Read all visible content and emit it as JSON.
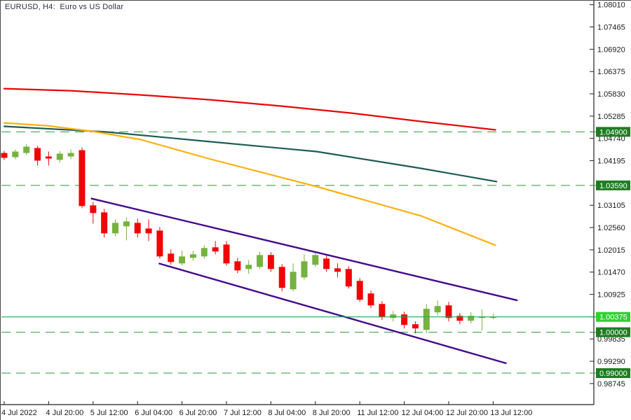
{
  "window": {
    "title": "EURUSD, H4:  Euro vs US Dollar"
  },
  "colors": {
    "background": "#ffffff",
    "frame_border": "#4a4a4a",
    "axis_line": "#222222",
    "axis_text": "#1a1a1a",
    "title_text": "#2c2c44",
    "bull": "#76b23f",
    "bear": "#f00505",
    "ma_red": "#e80707",
    "ma_teal": "#1d5c55",
    "ma_orange": "#ffb00f",
    "channel_purple": "#45098e",
    "level_dashed_green": "#2f9935",
    "current_price_line": "#21a857",
    "badge_current_bg": "#2fd032",
    "badge_level_bg": "#1e7d22",
    "badge_text": "#ffffff"
  },
  "chart_data": {
    "type": "candlestick",
    "title": "EURUSD, H4:  Euro vs US Dollar",
    "symbol": "EURUSD",
    "timeframe": "H4",
    "description": "Euro vs US Dollar",
    "current_price": 1.00375,
    "price_axis": {
      "side": "right",
      "range_bottom": 0.9823,
      "range_top": 1.0809,
      "tick_labels": [
        "1.08010",
        "1.07465",
        "1.06920",
        "1.06375",
        "1.05830",
        "1.05285",
        "1.04740",
        "1.04195",
        "1.03105",
        "1.02560",
        "1.02015",
        "1.01470",
        "1.00925",
        "0.99835",
        "0.99290",
        "0.98745"
      ]
    },
    "levels": [
      {
        "price": 1.049,
        "label": "1.04900",
        "style": "dashed"
      },
      {
        "price": 1.0359,
        "label": "1.03590",
        "style": "dashed"
      },
      {
        "price": 1.00375,
        "label": "1.00375",
        "style": "current"
      },
      {
        "price": 1.0,
        "label": "1.00000",
        "style": "dashed"
      },
      {
        "price": 0.99,
        "label": "0.99000",
        "style": "dashed"
      }
    ],
    "time_axis": {
      "labels": [
        {
          "index": 0,
          "label": "4 Jul 2022"
        },
        {
          "index": 4,
          "label": "4 Jul 20:00"
        },
        {
          "index": 8,
          "label": "5 Jul 12:00"
        },
        {
          "index": 12,
          "label": "6 Jul 04:00"
        },
        {
          "index": 16,
          "label": "6 Jul 20:00"
        },
        {
          "index": 20,
          "label": "7 Jul 12:00"
        },
        {
          "index": 24,
          "label": "8 Jul 04:00"
        },
        {
          "index": 28,
          "label": "8 Jul 20:00"
        },
        {
          "index": 32,
          "label": "11 Jul 12:00"
        },
        {
          "index": 36,
          "label": "12 Jul 04:00"
        },
        {
          "index": 40,
          "label": "12 Jul 20:00"
        },
        {
          "index": 44,
          "label": "13 Jul 12:00"
        }
      ]
    },
    "candles_format": [
      "open",
      "high",
      "low",
      "close"
    ],
    "candles": [
      [
        1.04384,
        1.04435,
        1.04213,
        1.04264
      ],
      [
        1.04281,
        1.04469,
        1.0423,
        1.04418
      ],
      [
        1.04384,
        1.04606,
        1.04333,
        1.04538
      ],
      [
        1.04504,
        1.04555,
        1.04076,
        1.04196
      ],
      [
        1.04298,
        1.04418,
        1.04076,
        1.04247
      ],
      [
        1.04213,
        1.04435,
        1.04145,
        1.04367
      ],
      [
        1.04298,
        1.04469,
        1.0423,
        1.04384
      ],
      [
        1.04452,
        1.04521,
        1.03033,
        1.03085
      ],
      [
        1.03102,
        1.03187,
        1.02657,
        1.02914
      ],
      [
        1.02931,
        1.03016,
        1.02315,
        1.02418
      ],
      [
        1.02418,
        1.0276,
        1.0235,
        1.02674
      ],
      [
        1.02589,
        1.02811,
        1.02247,
        1.02709
      ],
      [
        1.02674,
        1.02777,
        1.02315,
        1.02418
      ],
      [
        1.02537,
        1.0276,
        1.0223,
        1.02418
      ],
      [
        1.02486,
        1.02572,
        1.01802,
        1.01854
      ],
      [
        1.01922,
        1.02025,
        1.01649,
        1.01717
      ],
      [
        1.01683,
        1.01991,
        1.01631,
        1.01854
      ],
      [
        1.0182,
        1.01991,
        1.01751,
        1.01905
      ],
      [
        1.01854,
        1.02127,
        1.01802,
        1.02059
      ],
      [
        1.02076,
        1.0223,
        1.01905,
        1.01974
      ],
      [
        1.02144,
        1.0223,
        1.01631,
        1.01683
      ],
      [
        1.01734,
        1.0182,
        1.01444,
        1.01512
      ],
      [
        1.01546,
        1.01768,
        1.01427,
        1.01649
      ],
      [
        1.01597,
        1.01974,
        1.01546,
        1.01888
      ],
      [
        1.01888,
        1.01956,
        1.01478,
        1.01546
      ],
      [
        1.01597,
        1.01666,
        1.00999,
        1.01084
      ],
      [
        1.0105,
        1.01683,
        1.00999,
        1.01478
      ],
      [
        1.01341,
        1.01905,
        1.0129,
        1.01734
      ],
      [
        1.01649,
        1.01974,
        1.01597,
        1.01888
      ],
      [
        1.01802,
        1.01888,
        1.01478,
        1.01546
      ],
      [
        1.01563,
        1.01683,
        1.01341,
        1.01478
      ],
      [
        1.01546,
        1.01614,
        1.01067,
        1.01119
      ],
      [
        1.01255,
        1.01324,
        1.00742,
        1.00794
      ],
      [
        1.00948,
        1.01016,
        1.00589,
        1.00657
      ],
      [
        1.00691,
        1.0076,
        1.00298,
        1.00366
      ],
      [
        1.00349,
        1.0052,
        1.00264,
        1.00435
      ],
      [
        1.00435,
        1.00503,
        1.00093,
        1.00178
      ],
      [
        1.00195,
        1.00264,
        0.99973,
        1.00093
      ],
      [
        1.00059,
        1.00691,
        0.99973,
        1.00572
      ],
      [
        1.00486,
        1.00777,
        1.00409,
        1.0064
      ],
      [
        1.00657,
        1.00742,
        1.00264,
        1.00349
      ],
      [
        1.00401,
        1.00469,
        1.00195,
        1.00281
      ],
      [
        1.00281,
        1.00486,
        1.00212,
        1.00401
      ],
      [
        1.00349,
        1.00555,
        1.00042,
        1.00383
      ],
      [
        1.00349,
        1.00452,
        1.00315,
        1.00375
      ]
    ],
    "moving_averages": [
      {
        "name": "ma-slow-red",
        "color_key": "ma_red",
        "points": [
          [
            0,
            1.05957
          ],
          [
            6.0,
            1.05906
          ],
          [
            12.3,
            1.05803
          ],
          [
            18.6,
            1.05684
          ],
          [
            24.9,
            1.0553
          ],
          [
            31.2,
            1.05359
          ],
          [
            37.5,
            1.05154
          ],
          [
            44.2,
            1.04949
          ]
        ]
      },
      {
        "name": "ma-mid-teal",
        "color_key": "ma_teal",
        "points": [
          [
            0,
            1.05034
          ],
          [
            9.2,
            1.04897
          ],
          [
            18.6,
            1.04658
          ],
          [
            28.1,
            1.04418
          ],
          [
            37.5,
            1.04008
          ],
          [
            44.3,
            1.03683
          ]
        ]
      },
      {
        "name": "ma-fast-orange",
        "color_key": "ma_orange",
        "points": [
          [
            0,
            1.05119
          ],
          [
            3.8,
            1.05051
          ],
          [
            7.9,
            1.04914
          ],
          [
            12.3,
            1.04709
          ],
          [
            18.6,
            1.0423
          ],
          [
            28.1,
            1.03563
          ],
          [
            37.5,
            1.02845
          ],
          [
            44.2,
            1.02127
          ]
        ]
      }
    ],
    "channel": {
      "upper": [
        [
          7.8,
          1.03273
        ],
        [
          46.2,
          1.00777
        ]
      ],
      "lower": [
        [
          13.9,
          1.01683
        ],
        [
          45.2,
          0.99238
        ]
      ]
    }
  }
}
